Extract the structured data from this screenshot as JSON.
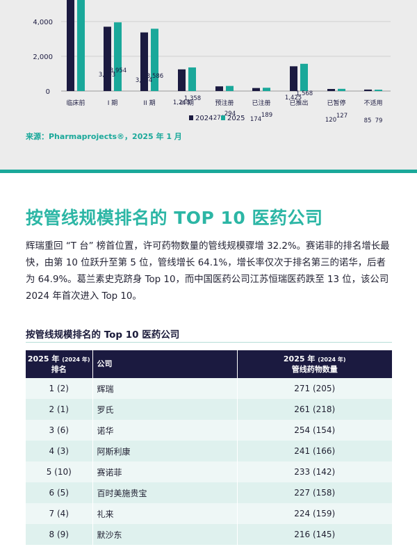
{
  "chart_data": {
    "type": "bar",
    "categories": [
      "临床前",
      "I 期",
      "II 期",
      "III 期",
      "预注册",
      "已注册",
      "已推出",
      "已暂停",
      "不适用"
    ],
    "series": [
      {
        "name": "2024",
        "values": [
          null,
          3703,
          3374,
          1248,
          270,
          174,
          1425,
          120,
          85
        ]
      },
      {
        "name": "2025",
        "values": [
          null,
          3954,
          3586,
          1358,
          294,
          189,
          1568,
          127,
          79
        ]
      }
    ],
    "yticks": [
      "4,000",
      "2,000",
      "0"
    ],
    "ylim": [
      0,
      5200
    ],
    "legend": {
      "placement": "bottom-center",
      "labels": [
        "2024",
        "2025"
      ]
    },
    "grid": true,
    "colors": {
      "2024": "#1b1a40",
      "2025": "#1aa89a"
    }
  },
  "chart_labels": {
    "y4000": "4,000",
    "y2000": "2,000",
    "y0": "0",
    "cat0": "临床前",
    "cat1": "I 期",
    "cat2": "II 期",
    "cat3": "III 期",
    "cat4": "预注册",
    "cat5": "已注册",
    "cat6": "已推出",
    "cat7": "已暂停",
    "cat8": "不适用",
    "v24_1": "3,703",
    "v25_1": "3,954",
    "v24_2": "3,374",
    "v25_2": "3,586",
    "v24_3": "1,248",
    "v25_3": "1,358",
    "v24_4": "270",
    "v25_4": "294",
    "v24_5": "174",
    "v25_5": "189",
    "v24_6": "1,425",
    "v25_6": "1,568",
    "v24_7": "120",
    "v25_7": "127",
    "v24_8": "85",
    "v25_8": "79",
    "legend_2024": "2024",
    "legend_2025": "2025"
  },
  "source": "来源：Pharmaprojects®，2025 年 1 月",
  "section_title": "按管线规模排名的 TOP 10 医药公司",
  "body_text": "辉瑞重回 “T 台” 榜首位置，许可药物数量的管线规模骤增 32.2%。赛诺菲的排名增长最快，由第 10 位跃升至第 5 位，管线增长 64.1%，增长率仅次于排名第三的诺华，后者为 64.9%。葛兰素史克跻身 Top 10，而中国医药公司江苏恒瑞医药跌至 13 位，该公司 2024 年首次进入 Top 10。",
  "table": {
    "caption": "按管线规模排名的 Top 10 医药公司",
    "header": {
      "col1_main": "2025 年",
      "col1_sub": "(2024 年)",
      "col1_line2": "排名",
      "col2": "公司",
      "col3_main": "2025 年",
      "col3_sub": "(2024 年)",
      "col3_line2": "管线药物数量"
    },
    "rows": [
      {
        "rank": "1 (2)",
        "company": "辉瑞",
        "count": "271 (205)"
      },
      {
        "rank": "2 (1)",
        "company": "罗氏",
        "count": "261 (218)"
      },
      {
        "rank": "3 (6)",
        "company": "诺华",
        "count": "254 (154)"
      },
      {
        "rank": "4 (3)",
        "company": "阿斯利康",
        "count": "241 (166)"
      },
      {
        "rank": "5 (10)",
        "company": "赛诺菲",
        "count": "233 (142)"
      },
      {
        "rank": "6 (5)",
        "company": "百时美施贵宝",
        "count": "227 (158)"
      },
      {
        "rank": "7 (4)",
        "company": "礼来",
        "count": "224 (159)"
      },
      {
        "rank": "8 (9)",
        "company": "默沙东",
        "count": "216 (145)"
      }
    ]
  }
}
